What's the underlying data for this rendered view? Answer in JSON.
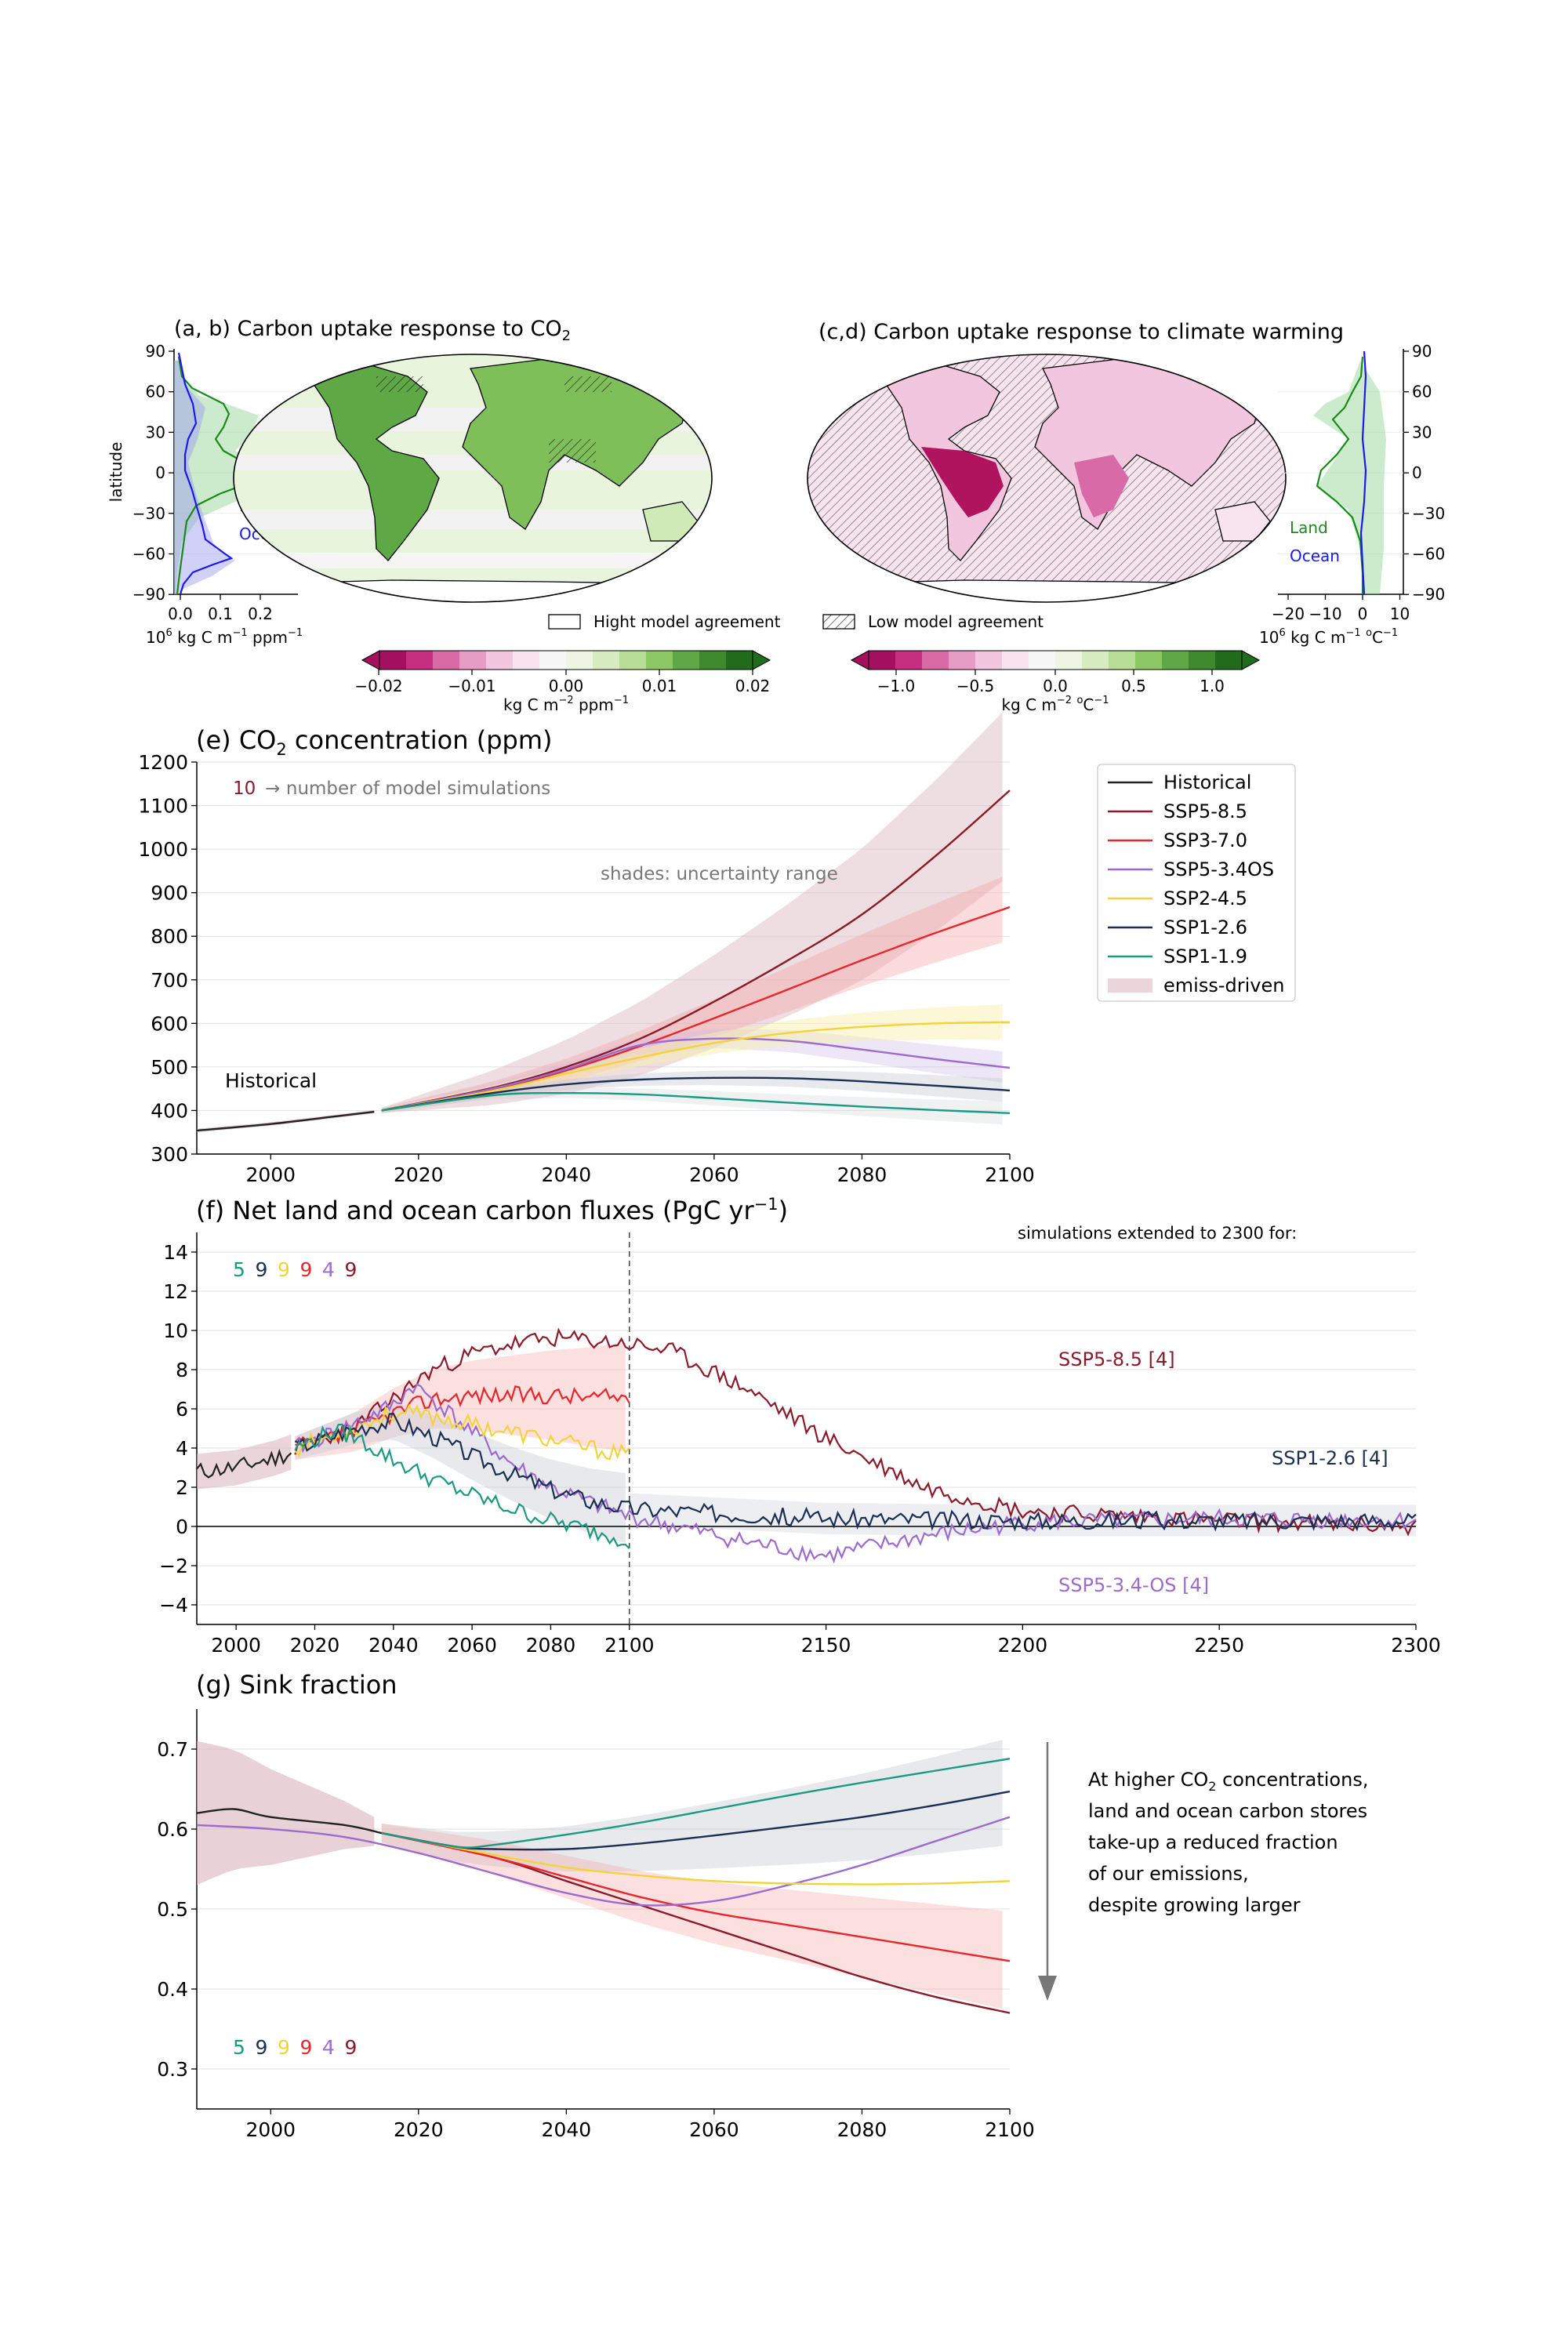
{
  "maps": {
    "co2_title": "(a, b) Carbon uptake response to CO",
    "co2_title_sub": "2",
    "clim_title": "(c,d) Carbon uptake response to climate warming",
    "lat_label": "latitude",
    "lat_ticks": [
      "90",
      "60",
      "30",
      "0",
      "−30",
      "−60",
      "−90"
    ],
    "left_xticks": [
      "0.0",
      "0.1",
      "0.2"
    ],
    "right_xticks": [
      "−20",
      "−10",
      "0",
      "10"
    ],
    "left_xlabel": {
      "pre": "10",
      "sup": "6",
      "mid": " kg C m",
      "sup2": "−1",
      "post": " ppm",
      "sup3": "−1"
    },
    "right_xlabel": {
      "pre": "10",
      "sup": "6",
      "mid": " kg C m",
      "sup2": "−1",
      "post": " ",
      "sup3": "o",
      "tail": "C",
      "sup4": "−1"
    },
    "land_label": "Land",
    "ocean_label": "Ocean",
    "legend_high": "Hight model agreement",
    "legend_low": "Low model agreement",
    "cbar_left_ticks": [
      "−0.02",
      "−0.01",
      "0.00",
      "0.01",
      "0.02"
    ],
    "cbar_right_ticks": [
      "−1.0",
      "−0.5",
      "0.0",
      "0.5",
      "1.0"
    ],
    "cbar_left_label": {
      "pre": "kg C m",
      "sup": "−2",
      "post": " ppm",
      "sup2": "−1"
    },
    "cbar_right_label": {
      "pre": "kg C m",
      "sup": "−2",
      "post": " ",
      "sup2": "o",
      "tail": "C",
      "sup3": "−1"
    },
    "colors": {
      "land": "#1a8a1a",
      "ocean": "#1a1aee"
    }
  },
  "panel_e": {
    "title_pre": "(e) CO",
    "title_sub": "2",
    "title_post": " concentration (ppm)",
    "annot_num": "10",
    "annot_text": "→ number of model simulations",
    "shades_text": "shades: uncertainty range",
    "hist_label": "Historical"
  },
  "legend": {
    "items": [
      {
        "label": "Historical",
        "color": "#222222"
      },
      {
        "label": "SSP5-8.5",
        "color": "#8b1a2b"
      },
      {
        "label": "SSP3-7.0",
        "color": "#e8262b"
      },
      {
        "label": "SSP5-3.4OS",
        "color": "#9b6bcd"
      },
      {
        "label": "SSP2-4.5",
        "color": "#f2d43a"
      },
      {
        "label": "SSP1-2.6",
        "color": "#1c2f52"
      },
      {
        "label": "SSP1-1.9",
        "color": "#1a9a80"
      }
    ],
    "patch_label": "emiss-driven",
    "patch_color": "#ead6da"
  },
  "panel_f": {
    "title_pre": "(f) Net land and ocean carbon fluxes (PgC yr",
    "title_sup": "−1",
    "title_post": ")",
    "ext_text": "simulations extended to 2300 for:",
    "counts": [
      "5",
      "9",
      "9",
      "9",
      "4",
      "9"
    ],
    "count_colors": [
      "#1a9a80",
      "#1c2f52",
      "#f2d43a",
      "#e8262b",
      "#9b6bcd",
      "#8b1a2b"
    ],
    "label_585": "SSP5-8.5 [4]",
    "label_126": "SSP1-2.6 [4]",
    "label_34os": "SSP5-3.4-OS [4]"
  },
  "panel_g": {
    "title": "(g) Sink fraction",
    "counts": [
      "5",
      "9",
      "9",
      "9",
      "4",
      "9"
    ],
    "text_1_pre": "At higher CO",
    "text_1_sub": "2",
    "text_1_post": " concentrations,",
    "text_2": "land and ocean carbon stores",
    "text_3": "take-up a reduced fraction",
    "text_4": "of our emissions,",
    "text_5": "despite growing larger"
  },
  "chart_data": [
    {
      "type": "line",
      "xlim": [
        1990,
        2100
      ],
      "ylim": [
        300,
        1200
      ],
      "xticks": [
        2000,
        2020,
        2040,
        2060,
        2080,
        2100
      ],
      "yticks": [
        300,
        400,
        500,
        600,
        700,
        800,
        900,
        1000,
        1100,
        1200
      ],
      "series": [
        {
          "name": "Historical",
          "points": [
            [
              1990,
              354
            ],
            [
              2000,
              369
            ],
            [
              2010,
              389
            ],
            [
              2014,
              397
            ]
          ]
        },
        {
          "name": "SSP5-8.5",
          "points": [
            [
              2015,
              400
            ],
            [
              2030,
              452
            ],
            [
              2040,
              500
            ],
            [
              2050,
              565
            ],
            [
              2060,
              650
            ],
            [
              2070,
              745
            ],
            [
              2080,
              850
            ],
            [
              2090,
              985
            ],
            [
              2100,
              1135
            ]
          ]
        },
        {
          "name": "SSP3-7.0",
          "points": [
            [
              2015,
              400
            ],
            [
              2030,
              448
            ],
            [
              2040,
              492
            ],
            [
              2050,
              548
            ],
            [
              2060,
              612
            ],
            [
              2070,
              678
            ],
            [
              2080,
              745
            ],
            [
              2090,
              808
            ],
            [
              2100,
              867
            ]
          ]
        },
        {
          "name": "SSP5-3.4OS",
          "points": [
            [
              2015,
              400
            ],
            [
              2030,
              450
            ],
            [
              2040,
              495
            ],
            [
              2050,
              550
            ],
            [
              2060,
              565
            ],
            [
              2070,
              560
            ],
            [
              2080,
              540
            ],
            [
              2090,
              518
            ],
            [
              2100,
              498
            ]
          ]
        },
        {
          "name": "SSP2-4.5",
          "points": [
            [
              2015,
              400
            ],
            [
              2030,
              445
            ],
            [
              2040,
              485
            ],
            [
              2050,
              522
            ],
            [
              2060,
              555
            ],
            [
              2070,
              578
            ],
            [
              2080,
              592
            ],
            [
              2090,
              600
            ],
            [
              2100,
              603
            ]
          ]
        },
        {
          "name": "SSP1-2.6",
          "points": [
            [
              2015,
              400
            ],
            [
              2030,
              440
            ],
            [
              2040,
              460
            ],
            [
              2050,
              471
            ],
            [
              2060,
              475
            ],
            [
              2070,
              474
            ],
            [
              2080,
              467
            ],
            [
              2090,
              457
            ],
            [
              2100,
              446
            ]
          ]
        },
        {
          "name": "SSP1-1.9",
          "points": [
            [
              2015,
              400
            ],
            [
              2030,
              435
            ],
            [
              2040,
              440
            ],
            [
              2050,
              437
            ],
            [
              2060,
              428
            ],
            [
              2070,
              418
            ],
            [
              2080,
              409
            ],
            [
              2090,
              401
            ],
            [
              2100,
              394
            ]
          ]
        }
      ]
    },
    {
      "type": "line",
      "xlim": [
        1990,
        2300
      ],
      "ylim": [
        -5,
        15
      ],
      "xticks": [
        2000,
        2020,
        2040,
        2060,
        2080,
        2100,
        2150,
        2200,
        2250,
        2300
      ],
      "yticks": [
        -4,
        -2,
        0,
        2,
        4,
        6,
        8,
        10,
        12,
        14
      ],
      "series": [
        {
          "name": "Historical",
          "points": [
            [
              1990,
              2.8
            ],
            [
              2000,
              3.0
            ],
            [
              2010,
              3.5
            ],
            [
              2014,
              3.8
            ]
          ]
        },
        {
          "name": "SSP5-8.5",
          "points": [
            [
              2015,
              4.0
            ],
            [
              2030,
              5.0
            ],
            [
              2040,
              6.5
            ],
            [
              2050,
              8.0
            ],
            [
              2060,
              8.8
            ],
            [
              2070,
              9.3
            ],
            [
              2080,
              9.6
            ],
            [
              2090,
              9.5
            ],
            [
              2100,
              9.3
            ],
            [
              2110,
              9.0
            ],
            [
              2130,
              7.0
            ],
            [
              2150,
              4.5
            ],
            [
              2175,
              2.0
            ],
            [
              2200,
              0.8
            ],
            [
              2250,
              0.3
            ],
            [
              2300,
              0.0
            ]
          ]
        },
        {
          "name": "SSP3-7.0",
          "points": [
            [
              2015,
              4.0
            ],
            [
              2030,
              4.8
            ],
            [
              2040,
              5.8
            ],
            [
              2050,
              6.5
            ],
            [
              2060,
              6.7
            ],
            [
              2070,
              6.7
            ],
            [
              2080,
              6.7
            ],
            [
              2090,
              6.6
            ],
            [
              2100,
              6.6
            ]
          ]
        },
        {
          "name": "SSP5-3.4OS",
          "points": [
            [
              2015,
              4.0
            ],
            [
              2030,
              5.2
            ],
            [
              2040,
              6.2
            ],
            [
              2045,
              7.2
            ],
            [
              2050,
              6.5
            ],
            [
              2060,
              4.8
            ],
            [
              2070,
              3.2
            ],
            [
              2080,
              2.0
            ],
            [
              2090,
              1.2
            ],
            [
              2100,
              0.5
            ],
            [
              2130,
              -0.8
            ],
            [
              2150,
              -1.5
            ],
            [
              2175,
              -0.5
            ],
            [
              2200,
              0.2
            ],
            [
              2250,
              0.4
            ],
            [
              2300,
              0.3
            ]
          ]
        },
        {
          "name": "SSP2-4.5",
          "points": [
            [
              2015,
              4.0
            ],
            [
              2030,
              5.0
            ],
            [
              2040,
              5.8
            ],
            [
              2050,
              5.6
            ],
            [
              2060,
              5.2
            ],
            [
              2070,
              4.8
            ],
            [
              2080,
              4.4
            ],
            [
              2090,
              4.0
            ],
            [
              2100,
              3.6
            ]
          ]
        },
        {
          "name": "SSP1-2.6",
          "points": [
            [
              2015,
              4.0
            ],
            [
              2030,
              5.0
            ],
            [
              2040,
              5.4
            ],
            [
              2050,
              4.6
            ],
            [
              2060,
              3.6
            ],
            [
              2070,
              2.7
            ],
            [
              2080,
              1.9
            ],
            [
              2090,
              1.3
            ],
            [
              2100,
              0.9
            ],
            [
              2150,
              0.4
            ],
            [
              2200,
              0.3
            ],
            [
              2250,
              0.3
            ],
            [
              2300,
              0.3
            ]
          ]
        },
        {
          "name": "SSP1-1.9",
          "points": [
            [
              2015,
              4.0
            ],
            [
              2025,
              4.9
            ],
            [
              2030,
              4.6
            ],
            [
              2040,
              3.4
            ],
            [
              2050,
              2.4
            ],
            [
              2060,
              1.6
            ],
            [
              2070,
              0.9
            ],
            [
              2080,
              0.3
            ],
            [
              2090,
              -0.2
            ],
            [
              2100,
              -0.7
            ]
          ]
        }
      ]
    },
    {
      "type": "line",
      "xlim": [
        1990,
        2100
      ],
      "ylim": [
        0.25,
        0.75
      ],
      "xticks": [
        2000,
        2020,
        2040,
        2060,
        2080,
        2100
      ],
      "yticks": [
        0.3,
        0.4,
        0.5,
        0.6,
        0.7
      ],
      "series": [
        {
          "name": "Historical",
          "points": [
            [
              1990,
              0.62
            ],
            [
              1995,
              0.625
            ],
            [
              2000,
              0.615
            ],
            [
              2010,
              0.605
            ],
            [
              2015,
              0.595
            ]
          ]
        },
        {
          "name": "SSP5-8.5",
          "points": [
            [
              2015,
              0.595
            ],
            [
              2030,
              0.565
            ],
            [
              2040,
              0.535
            ],
            [
              2050,
              0.505
            ],
            [
              2060,
              0.475
            ],
            [
              2070,
              0.445
            ],
            [
              2080,
              0.415
            ],
            [
              2090,
              0.39
            ],
            [
              2100,
              0.37
            ]
          ]
        },
        {
          "name": "SSP3-7.0",
          "points": [
            [
              2015,
              0.595
            ],
            [
              2030,
              0.565
            ],
            [
              2040,
              0.54
            ],
            [
              2050,
              0.515
            ],
            [
              2060,
              0.495
            ],
            [
              2070,
              0.48
            ],
            [
              2080,
              0.465
            ],
            [
              2090,
              0.45
            ],
            [
              2100,
              0.435
            ]
          ]
        },
        {
          "name": "SSP5-3.4OS",
          "points": [
            [
              1990,
              0.605
            ],
            [
              2000,
              0.6
            ],
            [
              2010,
              0.59
            ],
            [
              2020,
              0.57
            ],
            [
              2030,
              0.545
            ],
            [
              2040,
              0.52
            ],
            [
              2050,
              0.505
            ],
            [
              2060,
              0.51
            ],
            [
              2070,
              0.53
            ],
            [
              2080,
              0.555
            ],
            [
              2090,
              0.585
            ],
            [
              2100,
              0.615
            ]
          ]
        },
        {
          "name": "SSP2-4.5",
          "points": [
            [
              2015,
              0.595
            ],
            [
              2030,
              0.568
            ],
            [
              2040,
              0.552
            ],
            [
              2050,
              0.542
            ],
            [
              2060,
              0.535
            ],
            [
              2070,
              0.532
            ],
            [
              2080,
              0.531
            ],
            [
              2090,
              0.532
            ],
            [
              2100,
              0.535
            ]
          ]
        },
        {
          "name": "SSP1-2.6",
          "points": [
            [
              2015,
              0.595
            ],
            [
              2025,
              0.578
            ],
            [
              2030,
              0.575
            ],
            [
              2040,
              0.575
            ],
            [
              2050,
              0.582
            ],
            [
              2060,
              0.592
            ],
            [
              2070,
              0.603
            ],
            [
              2080,
              0.615
            ],
            [
              2090,
              0.63
            ],
            [
              2100,
              0.647
            ]
          ]
        },
        {
          "name": "SSP1-1.9",
          "points": [
            [
              2015,
              0.595
            ],
            [
              2025,
              0.578
            ],
            [
              2030,
              0.58
            ],
            [
              2040,
              0.593
            ],
            [
              2050,
              0.608
            ],
            [
              2060,
              0.625
            ],
            [
              2070,
              0.642
            ],
            [
              2080,
              0.658
            ],
            [
              2090,
              0.673
            ],
            [
              2100,
              0.688
            ]
          ]
        }
      ]
    }
  ]
}
